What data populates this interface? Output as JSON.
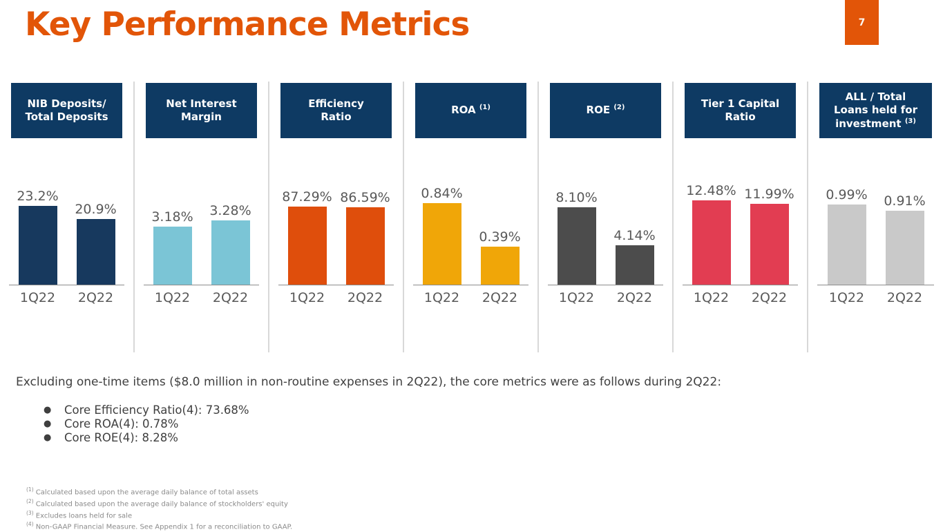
{
  "slide": {
    "title": "Key Performance Metrics",
    "page_number": "7"
  },
  "colors": {
    "accent_orange": "#E25508",
    "header_navy": "#0E3A63",
    "divider_gray": "#D8D8D8",
    "axis_gray": "#8C8C8C",
    "label_gray": "#595959",
    "body_text": "#3F3F3F",
    "footnote_gray": "#8A8A8A"
  },
  "chart_data": [
    {
      "type": "bar",
      "title": "NIB Deposits/ Total Deposits",
      "header_lines": [
        "NIB Deposits/",
        "Total Deposits"
      ],
      "header_sup": "",
      "categories": [
        "1Q22",
        "2Q22"
      ],
      "values": [
        23.2,
        20.9
      ],
      "labels": [
        "23.2%",
        "20.9%"
      ],
      "bar_color": "#17395E",
      "ylim": [
        9,
        29
      ],
      "legend": "none",
      "grid": false
    },
    {
      "type": "bar",
      "title": "Net Interest Margin",
      "header_lines": [
        "Net Interest",
        "Margin"
      ],
      "header_sup": "",
      "categories": [
        "1Q22",
        "2Q22"
      ],
      "values": [
        3.18,
        3.28
      ],
      "labels": [
        "3.18%",
        "3.28%"
      ],
      "bar_color": "#7BC5D6",
      "ylim": [
        2.25,
        4.03
      ],
      "legend": "none",
      "grid": false
    },
    {
      "type": "bar",
      "title": "Efficiency Ratio",
      "header_lines": [
        "Efficiency",
        "Ratio"
      ],
      "header_sup": "",
      "categories": [
        "1Q22",
        "2Q22"
      ],
      "values": [
        87.29,
        86.59
      ],
      "labels": [
        "87.29%",
        "86.59%"
      ],
      "bar_color": "#DF4E0C",
      "ylim": [
        0,
        124
      ],
      "legend": "none",
      "grid": false
    },
    {
      "type": "bar",
      "title": "ROA (1)",
      "header_lines": [
        "ROA"
      ],
      "header_sup": "(1)",
      "categories": [
        "1Q22",
        "2Q22"
      ],
      "values": [
        0.84,
        0.39
      ],
      "labels": [
        "0.84%",
        "0.39%"
      ],
      "bar_color": "#F0A608",
      "ylim": [
        0,
        1.14
      ],
      "legend": "none",
      "grid": false
    },
    {
      "type": "bar",
      "title": "ROE (2)",
      "header_lines": [
        "ROE"
      ],
      "header_sup": "(2)",
      "categories": [
        "1Q22",
        "2Q22"
      ],
      "values": [
        8.1,
        4.14
      ],
      "labels": [
        "8.10%",
        "4.14%"
      ],
      "bar_color": "#4C4C4C",
      "ylim": [
        0,
        11.6
      ],
      "legend": "none",
      "grid": false
    },
    {
      "type": "bar",
      "title": "Tier 1 Capital Ratio",
      "header_lines": [
        "Tier 1 Capital",
        "Ratio"
      ],
      "header_sup": "",
      "categories": [
        "1Q22",
        "2Q22"
      ],
      "values": [
        12.48,
        11.99
      ],
      "labels": [
        "12.48%",
        "11.99%"
      ],
      "bar_color": "#E23D52",
      "ylim": [
        0,
        16.4
      ],
      "legend": "none",
      "grid": false
    },
    {
      "type": "bar",
      "title": "ALL / Total Loans held for investment (3)",
      "header_lines": [
        "ALL / Total",
        "Loans held for",
        "investment"
      ],
      "header_sup": "(3)",
      "categories": [
        "1Q22",
        "2Q22"
      ],
      "values": [
        0.99,
        0.91
      ],
      "labels": [
        "0.99%",
        "0.91%"
      ],
      "bar_color": "#C9C9C9",
      "ylim": [
        0,
        1.365
      ],
      "legend": "none",
      "grid": false
    }
  ],
  "body": {
    "intro": "Excluding one-time items ($8.0 million in non-routine expenses in 2Q22), the core metrics were as follows during 2Q22:",
    "bullet_glyph": "●",
    "bullets": [
      "Core Efficiency Ratio(4): 73.68%",
      "Core ROA(4): 0.78%",
      "Core ROE(4): 8.28%"
    ]
  },
  "footnotes": [
    {
      "sup": "(1)",
      "text": " Calculated based upon the average daily balance of total assets"
    },
    {
      "sup": "(2)",
      "text": " Calculated based upon the average daily balance of stockholders' equity"
    },
    {
      "sup": "(3)",
      "text": " Excludes loans held for sale"
    },
    {
      "sup": "(4)",
      "text": " Non-GAAP Financial Measure. See Appendix 1 for a reconciliation to GAAP."
    }
  ]
}
